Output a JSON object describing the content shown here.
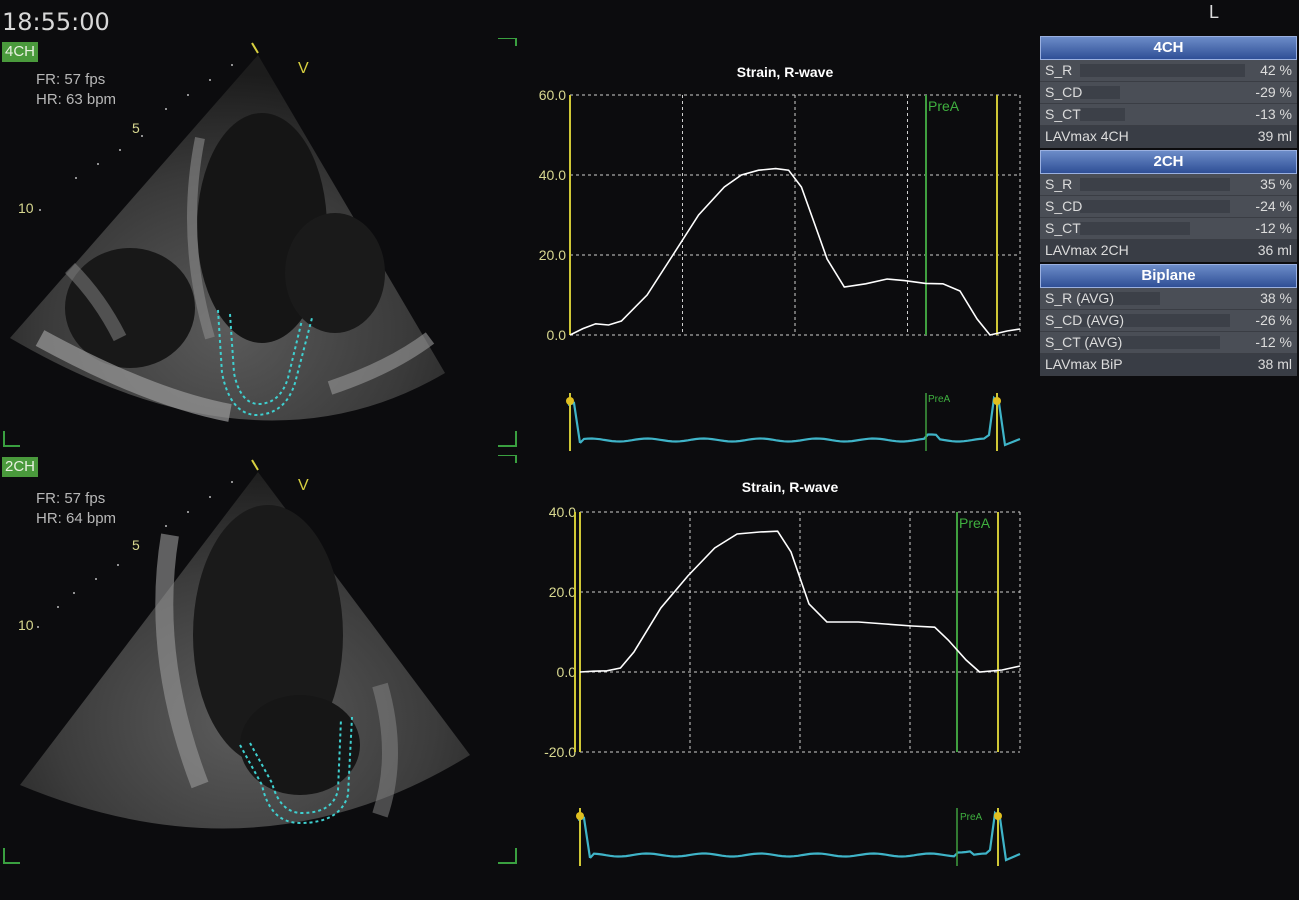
{
  "header": {
    "clock": "18:55:00",
    "orientation": "L"
  },
  "panels": [
    {
      "view": "4CH",
      "fr": "FR: 57 fps",
      "hr": "HR: 63 bpm",
      "v_marker": "V",
      "depth_5": "5",
      "depth_10": "10"
    },
    {
      "view": "2CH",
      "fr": "FR: 57 fps",
      "hr": "HR: 64 bpm",
      "v_marker": "V",
      "depth_5": "5",
      "depth_10": "10"
    }
  ],
  "chart_data": [
    {
      "type": "line",
      "title": "Strain, R-wave",
      "y_ticks": [
        "60.0",
        "40.0",
        "20.0",
        "0.0"
      ],
      "ylim": [
        0,
        60
      ],
      "marker_label": "PreA",
      "ecg_marker_label": "PreA",
      "series": [
        {
          "values": [
            [
              0,
              0
            ],
            [
              3,
              1.6
            ],
            [
              6,
              2.8
            ],
            [
              9,
              2.5
            ],
            [
              12,
              3.5
            ],
            [
              18,
              10
            ],
            [
              24,
              20
            ],
            [
              30,
              30
            ],
            [
              36,
              37
            ],
            [
              40,
              40
            ],
            [
              44,
              41.2
            ],
            [
              48,
              41.6
            ],
            [
              51,
              41.2
            ],
            [
              54,
              37
            ],
            [
              57,
              28
            ],
            [
              60,
              19
            ],
            [
              64,
              12
            ],
            [
              69,
              12.8
            ],
            [
              74,
              14
            ],
            [
              78,
              13.6
            ],
            [
              83,
              12.9
            ],
            [
              87,
              12.8
            ],
            [
              91,
              11
            ],
            [
              95,
              4
            ],
            [
              98,
              0
            ],
            [
              102,
              1
            ],
            [
              105,
              1.5
            ]
          ]
        }
      ],
      "grid": true,
      "colors": {
        "line": "#ffffff",
        "marker_yellow": "#d0c836",
        "marker_green": "#3f9f3f",
        "ecg": "#3fb4c8"
      }
    },
    {
      "type": "line",
      "title": "Strain, R-wave",
      "y_ticks": [
        "40.0",
        "20.0",
        "0.0",
        "-20.0"
      ],
      "ylim": [
        -20,
        40
      ],
      "marker_label": "PreA",
      "ecg_marker_label": "PreA",
      "series": [
        {
          "values": [
            [
              0,
              0
            ],
            [
              3,
              0.2
            ],
            [
              6,
              0.3
            ],
            [
              9,
              1
            ],
            [
              12,
              5
            ],
            [
              18,
              16
            ],
            [
              24,
              24
            ],
            [
              30,
              31
            ],
            [
              35,
              34.5
            ],
            [
              40,
              35
            ],
            [
              44,
              35.2
            ],
            [
              47,
              30
            ],
            [
              51,
              17
            ],
            [
              55,
              12.5
            ],
            [
              62,
              12.5
            ],
            [
              68,
              12
            ],
            [
              74,
              11.5
            ],
            [
              79,
              11.2
            ],
            [
              82,
              8
            ],
            [
              86,
              3
            ],
            [
              89,
              0
            ],
            [
              94,
              0.5
            ],
            [
              98,
              1.5
            ]
          ]
        }
      ],
      "grid": true,
      "colors": {
        "line": "#ffffff",
        "marker_yellow": "#d0c836",
        "marker_green": "#3f9f3f",
        "ecg": "#3fb4c8"
      }
    }
  ],
  "table": {
    "sections": [
      {
        "title": "4CH",
        "rows": [
          {
            "label": "S_R",
            "value": "42 %"
          },
          {
            "label": "S_CD",
            "value": "-29 %"
          },
          {
            "label": "S_CT",
            "value": "-13 %"
          },
          {
            "label": "LAVmax 4CH",
            "value": "39 ml"
          }
        ]
      },
      {
        "title": "2CH",
        "rows": [
          {
            "label": "S_R",
            "value": "35 %"
          },
          {
            "label": "S_CD",
            "value": "-24 %"
          },
          {
            "label": "S_CT",
            "value": "-12 %"
          },
          {
            "label": "LAVmax 2CH",
            "value": "36 ml"
          }
        ]
      },
      {
        "title": "Biplane",
        "rows": [
          {
            "label": "S_R (AVG)",
            "value": "38 %"
          },
          {
            "label": "S_CD (AVG)",
            "value": "-26 %"
          },
          {
            "label": "S_CT (AVG)",
            "value": "-12 %"
          },
          {
            "label": "LAVmax BiP",
            "value": "38 ml"
          }
        ]
      }
    ]
  }
}
